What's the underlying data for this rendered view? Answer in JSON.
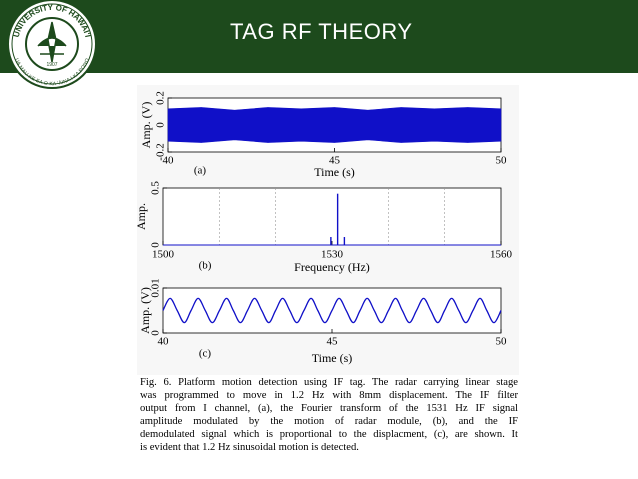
{
  "slide": {
    "title": "TAG RF THEORY",
    "logo": {
      "top": "UNIVERSITY OF HAWAI'I",
      "bottom": "UA MAU KE EA O KA 'ĀINA I KA PONO",
      "year": "1907"
    }
  },
  "chart_data": [
    {
      "type": "band",
      "panel": "(a)",
      "x_label": "Time (s)",
      "y_label": "Amp. (V)",
      "color": "#1010c8",
      "x": [
        40,
        41,
        42,
        43,
        44,
        45,
        46,
        47,
        48,
        49,
        50
      ],
      "upper": [
        0.12,
        0.13,
        0.11,
        0.13,
        0.12,
        0.13,
        0.11,
        0.13,
        0.12,
        0.13,
        0.12
      ],
      "lower": [
        -0.12,
        -0.13,
        -0.11,
        -0.13,
        -0.12,
        -0.13,
        -0.11,
        -0.13,
        -0.12,
        -0.13,
        -0.12
      ],
      "xlim": [
        40,
        50
      ],
      "ylim": [
        -0.2,
        0.2
      ],
      "xticks": [
        40,
        45,
        50
      ],
      "yticks": [
        -0.2,
        0,
        0.2
      ]
    },
    {
      "type": "stem",
      "panel": "(b)",
      "x_label": "Frequency (Hz)",
      "y_label": "Amp.",
      "color": "#1010c8",
      "x": [
        1529.8,
        1531,
        1532.2
      ],
      "values": [
        0.07,
        0.45,
        0.07
      ],
      "xlim": [
        1500,
        1560
      ],
      "ylim": [
        0,
        0.5
      ],
      "xticks": [
        1500,
        1530,
        1560
      ],
      "yticks": [
        0,
        0.5
      ],
      "xgrid": [
        1510,
        1520,
        1540,
        1550
      ]
    },
    {
      "type": "line",
      "panel": "(c)",
      "x_label": "Time (s)",
      "y_label": "Amp. (V)",
      "color": "#1010c8",
      "x": [
        40,
        40.21,
        40.42,
        40.63,
        40.83,
        41.04,
        41.25,
        41.46,
        41.67,
        41.88,
        42.08,
        42.29,
        42.5,
        42.71,
        42.92,
        43.13,
        43.33,
        43.54,
        43.75,
        43.96,
        44.17,
        44.38,
        44.58,
        44.79,
        45,
        45.21,
        45.42,
        45.63,
        45.83,
        46.04,
        46.25,
        46.46,
        46.67,
        46.88,
        47.08,
        47.29,
        47.5,
        47.71,
        47.92,
        48.13,
        48.33,
        48.54,
        48.75,
        48.96,
        49.17,
        49.38,
        49.58,
        49.79,
        50
      ],
      "values": [
        0.005,
        0.0077,
        0.005,
        0.0023,
        0.005,
        0.0077,
        0.005,
        0.0023,
        0.005,
        0.0077,
        0.005,
        0.0023,
        0.005,
        0.0077,
        0.005,
        0.0023,
        0.005,
        0.0077,
        0.005,
        0.0023,
        0.005,
        0.0077,
        0.005,
        0.0023,
        0.005,
        0.0077,
        0.005,
        0.0023,
        0.005,
        0.0077,
        0.005,
        0.0023,
        0.005,
        0.0077,
        0.005,
        0.0023,
        0.005,
        0.0077,
        0.005,
        0.0023,
        0.005,
        0.0077,
        0.005,
        0.0023,
        0.005,
        0.0077,
        0.005,
        0.0023,
        0.005
      ],
      "xlim": [
        40,
        50
      ],
      "ylim": [
        0,
        0.01
      ],
      "xticks": [
        40,
        45,
        50
      ],
      "yticks": [
        0,
        0.01
      ]
    }
  ],
  "caption": [
    "Fig. 6.  Platform motion detection using IF tag. The radar carrying linear stage",
    "was programmed to move in 1.2 Hz with 8mm displacement. The IF filter",
    "output from I channel, (a),  the Fourier transform of the 1531 Hz IF signal",
    "amplitude modulated by the motion of radar module, (b), and the IF",
    "demodulated signal which is proportional to the displacment, (c), are shown. It",
    "is evident that 1.2 Hz sinusoidal motion is detected."
  ]
}
